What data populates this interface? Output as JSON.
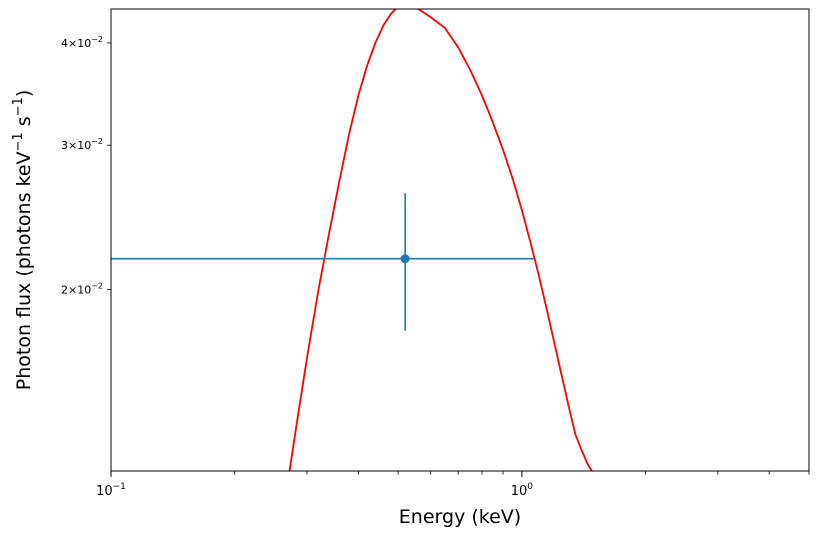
{
  "chart_data": {
    "type": "line",
    "xlabel": "Energy (keV)",
    "ylabel": "Photon flux (photons keV",
    "ylabel_exp1": "−1",
    "ylabel_mid": " s",
    "ylabel_exp2": "−1",
    "ylabel_end": ")",
    "xscale": "log",
    "yscale": "log",
    "xlim": [
      0.1,
      5.0
    ],
    "ylim": [
      0.012,
      0.044
    ],
    "grid": false,
    "x_ticks": [
      {
        "value": 0.1,
        "base": "10",
        "exp": "−1"
      },
      {
        "value": 1.0,
        "base": "10",
        "exp": "0"
      }
    ],
    "y_ticks": [
      {
        "value": 0.02,
        "mant": "2",
        "base": "10",
        "exp": "−2"
      },
      {
        "value": 0.03,
        "mant": "3",
        "base": "10",
        "exp": "−2"
      },
      {
        "value": 0.04,
        "mant": "4",
        "base": "10",
        "exp": "−2"
      }
    ],
    "model_curve": {
      "color": "#ff0000",
      "x": [
        0.272,
        0.285,
        0.3,
        0.32,
        0.34,
        0.36,
        0.38,
        0.4,
        0.42,
        0.44,
        0.46,
        0.48,
        0.5,
        0.53,
        0.56,
        0.6,
        0.65,
        0.7,
        0.75,
        0.8,
        0.85,
        0.9,
        0.95,
        1.0,
        1.05,
        1.1,
        1.15,
        1.2,
        1.25,
        1.3,
        1.35,
        1.4,
        1.45,
        1.48
      ],
      "y": [
        0.012,
        0.014,
        0.0165,
        0.02,
        0.0235,
        0.0272,
        0.031,
        0.0345,
        0.0375,
        0.04,
        0.042,
        0.0434,
        0.0443,
        0.0445,
        0.044,
        0.043,
        0.0417,
        0.0395,
        0.037,
        0.0345,
        0.032,
        0.0296,
        0.0273,
        0.025,
        0.0228,
        0.0208,
        0.0189,
        0.0172,
        0.0157,
        0.0144,
        0.0133,
        0.0127,
        0.0122,
        0.012
      ]
    },
    "data_point": {
      "color": "#1f77b4",
      "x": 0.52,
      "y": 0.0218,
      "x_lo": 0.1,
      "x_hi": 1.07,
      "y_lo": 0.0178,
      "y_hi": 0.0262
    }
  }
}
